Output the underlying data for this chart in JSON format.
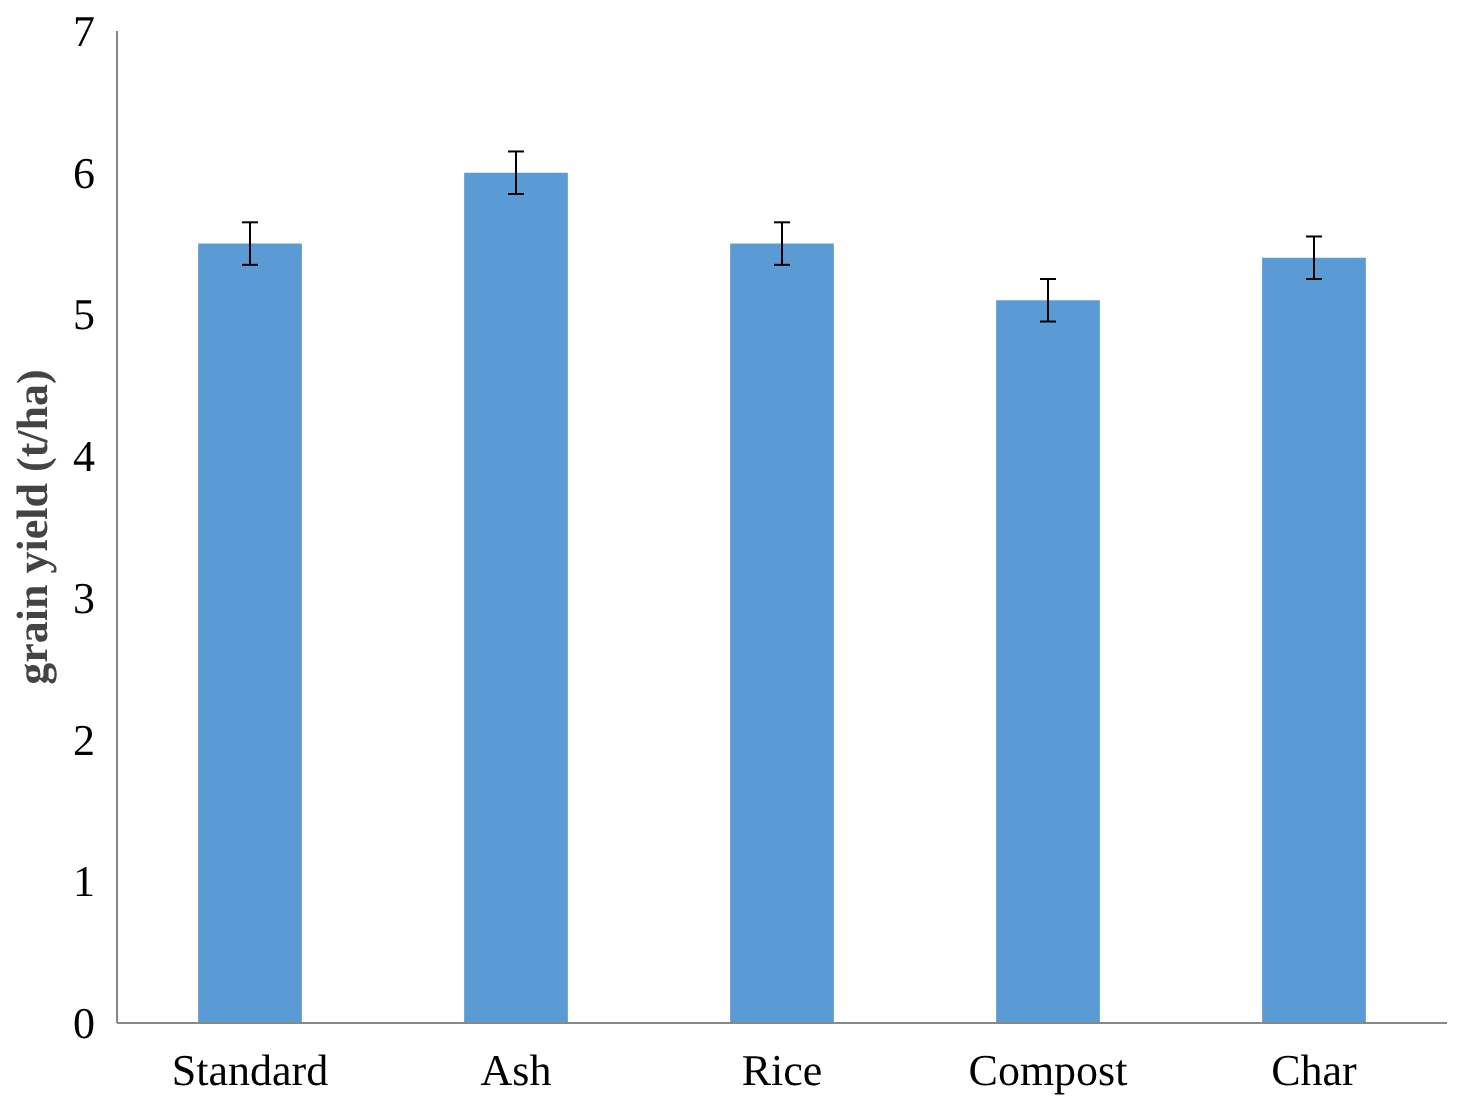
{
  "chart_data": {
    "type": "bar",
    "ylabel": "grain yield (t/ha)",
    "categories": [
      "Standard",
      "Ash",
      "Rice",
      "Compost",
      "Char"
    ],
    "values": [
      5.5,
      6.0,
      5.5,
      5.1,
      5.4
    ],
    "errors": [
      0.15,
      0.15,
      0.15,
      0.15,
      0.15
    ],
    "color": "#5b9bd5",
    "ylim": [
      0,
      7
    ],
    "yticks": [
      0,
      1,
      2,
      3,
      4,
      5,
      6,
      7
    ],
    "grid": false
  }
}
